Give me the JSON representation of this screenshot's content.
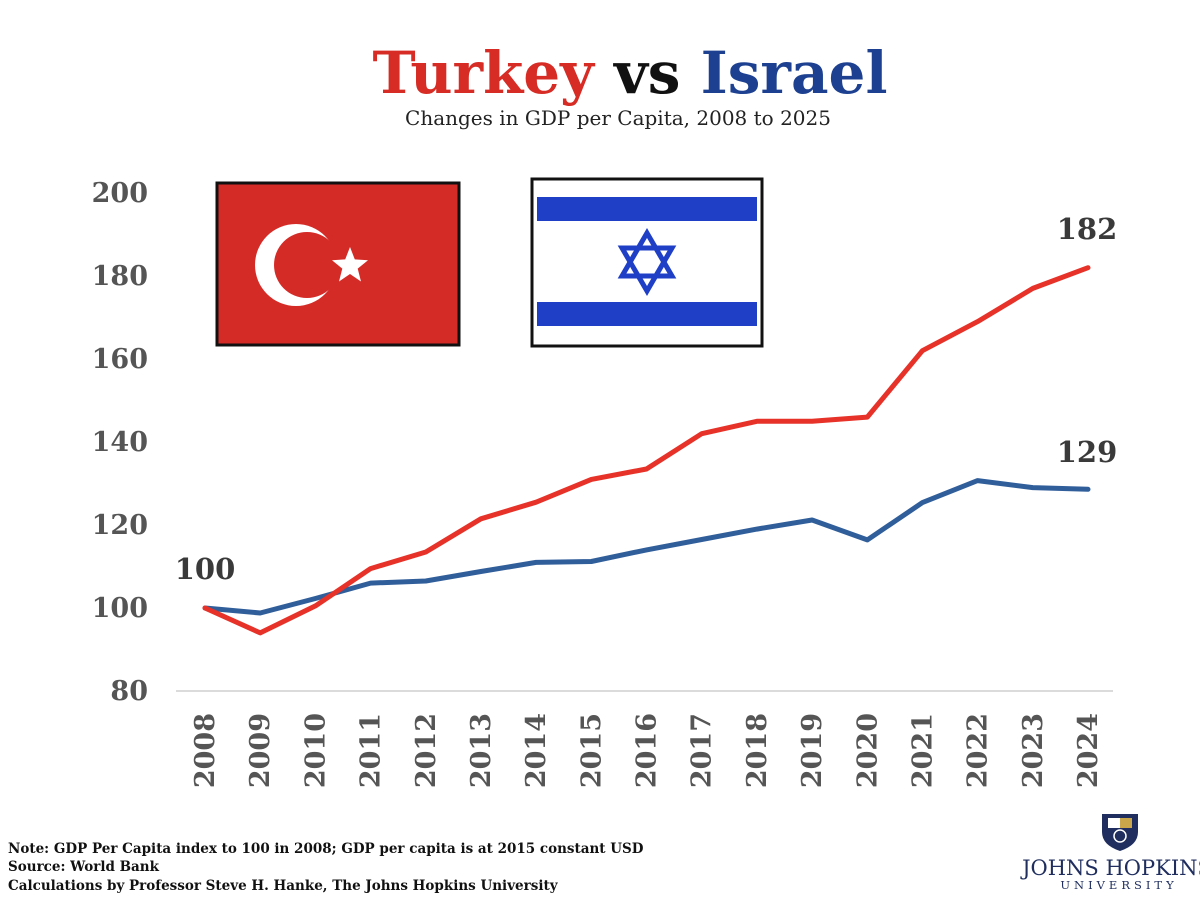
{
  "title": {
    "part1": "Turkey",
    "part2": "vs",
    "part3": "Israel"
  },
  "subtitle": "Changes in GDP per Capita, 2008 to 2025",
  "colors": {
    "turkey": "#e63228",
    "israel": "#305e9a",
    "title_red": "#d62c25",
    "title_blue": "#1d4190",
    "flag_red": "#d52b27",
    "flag_blue": "#1f3fc7"
  },
  "chart_data": {
    "type": "line",
    "title": "Turkey vs Israel",
    "subtitle": "Changes in GDP per Capita, 2008 to 2025",
    "x": [
      "2008",
      "2009",
      "2010",
      "2011",
      "2012",
      "2013",
      "2014",
      "2015",
      "2016",
      "2017",
      "2018",
      "2019",
      "2020",
      "2021",
      "2022",
      "2023",
      "2024"
    ],
    "ylim": [
      80,
      200
    ],
    "yticks": [
      80,
      100,
      120,
      140,
      160,
      180,
      200
    ],
    "grid": false,
    "series": [
      {
        "name": "Turkey",
        "values": [
          100,
          94,
          100.5,
          109.5,
          113.5,
          121.5,
          125.5,
          131,
          133.5,
          142,
          145,
          145,
          146,
          162,
          169,
          177,
          182
        ]
      },
      {
        "name": "Israel",
        "values": [
          100,
          98.8,
          102.3,
          106,
          106.5,
          108.8,
          111,
          111.2,
          114,
          116.5,
          119,
          121.2,
          116.4,
          125.4,
          130.7,
          129,
          128.6
        ]
      }
    ],
    "annotations": [
      {
        "text": "100",
        "series": "start"
      },
      {
        "text": "182",
        "series": "Turkey"
      },
      {
        "text": "129",
        "series": "Israel"
      }
    ]
  },
  "notes": [
    "Note: GDP Per Capita index to 100 in 2008; GDP per capita is at 2015 constant USD",
    "Source: World Bank",
    "Calculations by Professor Steve H. Hanke, The Johns Hopkins University"
  ],
  "logo": {
    "main": "JOHNS HOPKINS",
    "sub": "UNIVERSITY"
  }
}
